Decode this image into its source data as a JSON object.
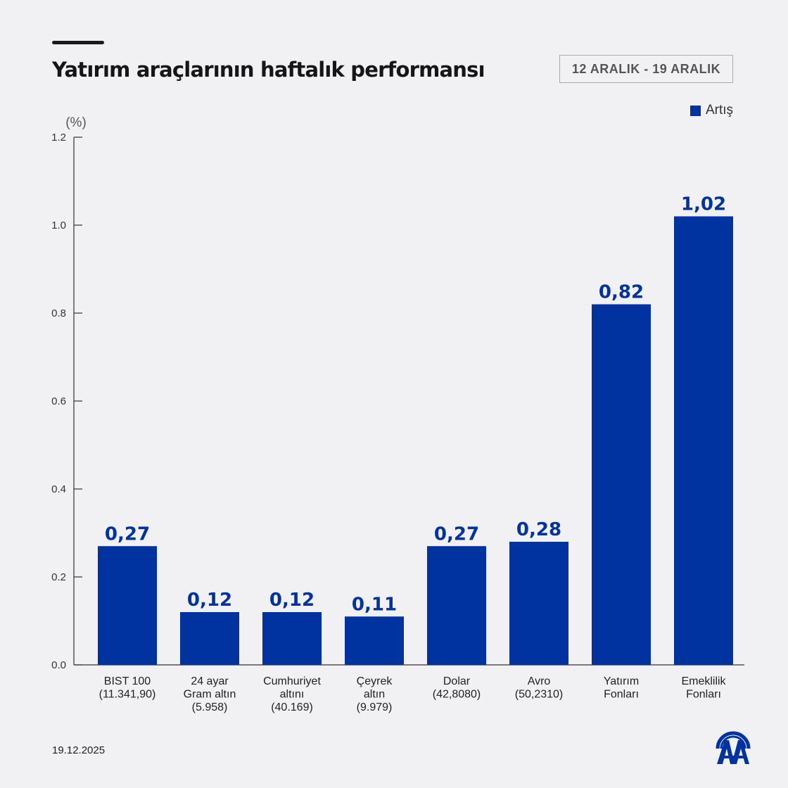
{
  "title": "Yatırım araçlarının haftalık performansı",
  "date_range": "12 ARALIK - 19 ARALIK",
  "footer_date": "19.12.2025",
  "logo_text": "AA",
  "colors": {
    "bar": "#0033a0",
    "label": "#0033a0",
    "background": "#f1f1f3"
  },
  "chart_data": {
    "type": "bar",
    "ylabel": "(%)",
    "ylim": [
      0,
      1.2
    ],
    "yticks": [
      "0.0",
      "0.2",
      "0.4",
      "0.6",
      "0.8",
      "1.0",
      "1.2"
    ],
    "ytick_values": [
      0,
      0.2,
      0.4,
      0.6,
      0.8,
      1.0,
      1.2
    ],
    "grid": false,
    "legend": {
      "position": "top-right",
      "entries": [
        "Artış"
      ]
    },
    "categories": [
      [
        "BIST 100",
        "(11.341,90)"
      ],
      [
        "24 ayar",
        "Gram altın",
        "(5.958)"
      ],
      [
        "Cumhuriyet",
        "altını",
        "(40.169)"
      ],
      [
        "Çeyrek",
        "altın",
        "(9.979)"
      ],
      [
        "Dolar",
        "(42,8080)"
      ],
      [
        "Avro",
        "(50,2310)"
      ],
      [
        "Yatırım",
        "Fonları"
      ],
      [
        "Emeklilik",
        "Fonları"
      ]
    ],
    "series": [
      {
        "name": "Artış",
        "values": [
          0.27,
          0.12,
          0.12,
          0.11,
          0.27,
          0.28,
          0.82,
          1.02
        ]
      }
    ],
    "data_labels": [
      "0,27",
      "0,12",
      "0,12",
      "0,11",
      "0,27",
      "0,28",
      "0,82",
      "1,02"
    ]
  }
}
